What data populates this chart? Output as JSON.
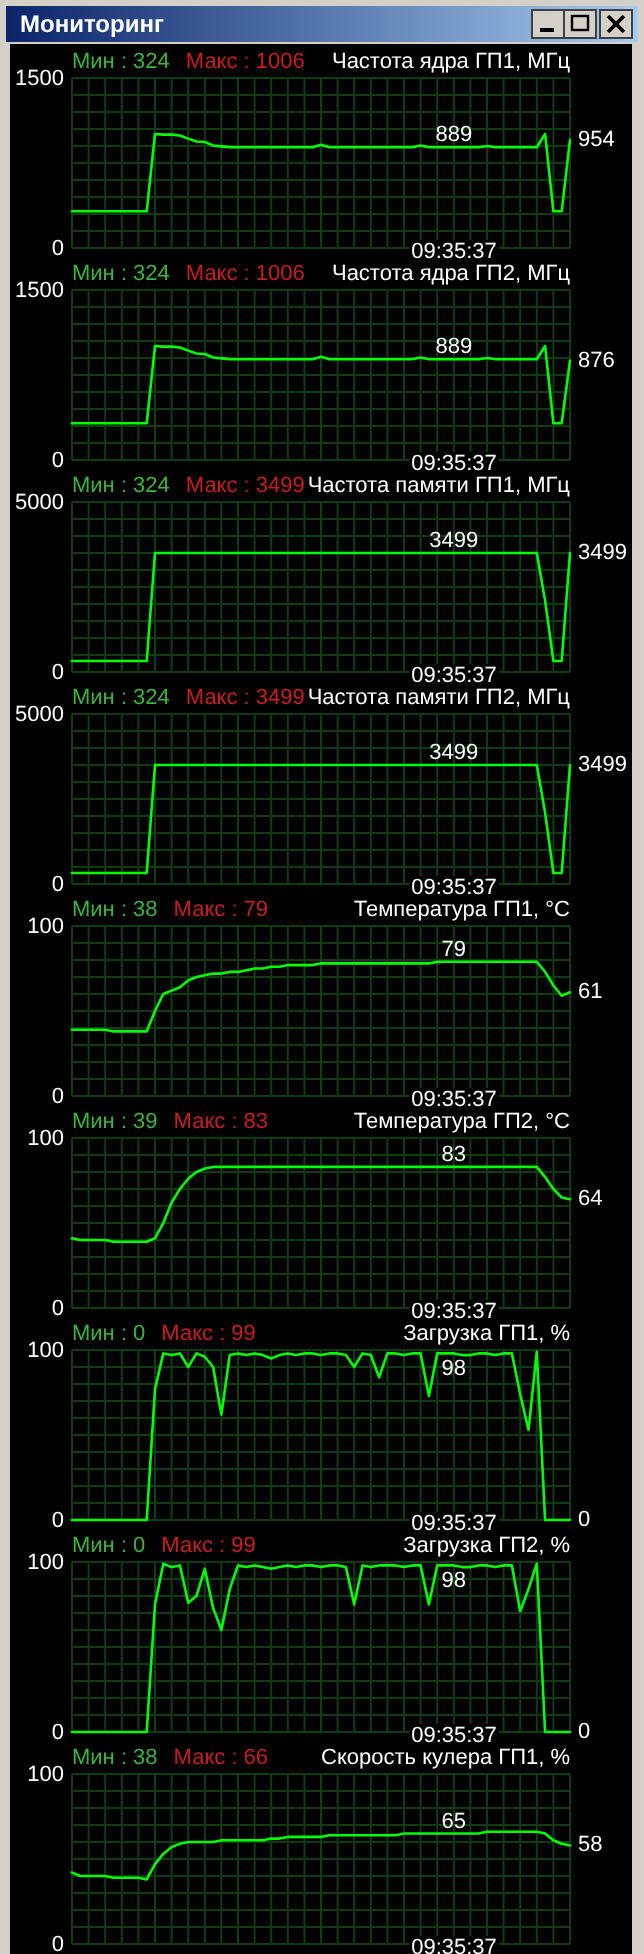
{
  "chart_data": [
    {
      "type": "other",
      "title": "Мониторинг"
    },
    {
      "type": "line",
      "title": "Частота ядра ГП1, МГц",
      "annotations": [
        "Мин : 324",
        "Макс : 1006",
        "09:35:37",
        "954",
        "889"
      ],
      "categories": [
        null,
        null,
        null,
        null,
        null,
        null,
        null,
        null,
        null,
        null,
        null,
        null,
        null,
        null,
        null,
        null,
        null,
        null,
        null,
        null,
        null,
        null,
        null,
        null,
        null,
        null,
        null,
        null,
        null,
        null,
        null,
        null,
        null,
        null,
        null,
        null,
        null,
        null,
        null,
        null,
        null,
        null,
        null,
        null,
        null,
        null,
        null,
        null,
        null,
        null,
        null,
        null,
        null,
        null,
        null,
        null,
        null,
        null,
        null,
        null,
        null
      ],
      "ylim": [
        0,
        1500
      ],
      "yticks": [
        0,
        {
          "value": 150,
          "label": null
        },
        {
          "value": 300,
          "label": null
        },
        {
          "value": 450,
          "label": null
        },
        {
          "value": 600,
          "label": null
        },
        {
          "value": 750,
          "label": null
        },
        {
          "value": 900,
          "label": null
        },
        {
          "value": 1050,
          "label": null
        },
        {
          "value": 1200,
          "label": null
        },
        {
          "value": 1350,
          "label": null
        },
        1500
      ],
      "tick_labels": "y",
      "grid": true,
      "series": [
        {
          "color": "#00ff00",
          "values": [
            324,
            324,
            324,
            324,
            324,
            324,
            324,
            324,
            324,
            324,
            1006,
            1000,
            1000,
            993,
            965,
            940,
            935,
            905,
            897,
            890,
            889,
            889,
            889,
            889,
            889,
            889,
            889,
            889,
            889,
            889,
            910,
            889,
            889,
            889,
            889,
            889,
            889,
            889,
            889,
            889,
            889,
            889,
            905,
            889,
            889,
            889,
            889,
            889,
            889,
            889,
            900,
            889,
            889,
            889,
            889,
            889,
            889,
            1006,
            324,
            324,
            954
          ]
        }
      ]
    },
    {
      "type": "line",
      "title": "Частота ядра ГП2, МГц",
      "annotations": [
        "Мин : 324",
        "Макс : 1006",
        "09:35:37",
        "876",
        "889"
      ],
      "categories": [
        null,
        null,
        null,
        null,
        null,
        null,
        null,
        null,
        null,
        null,
        null,
        null,
        null,
        null,
        null,
        null,
        null,
        null,
        null,
        null,
        null,
        null,
        null,
        null,
        null,
        null,
        null,
        null,
        null,
        null,
        null,
        null,
        null,
        null,
        null,
        null,
        null,
        null,
        null,
        null,
        null,
        null,
        null,
        null,
        null,
        null,
        null,
        null,
        null,
        null,
        null,
        null,
        null,
        null,
        null,
        null,
        null,
        null,
        null,
        null,
        null
      ],
      "ylim": [
        0,
        1500
      ],
      "yticks": [
        0,
        {
          "value": 150,
          "label": null
        },
        {
          "value": 300,
          "label": null
        },
        {
          "value": 450,
          "label": null
        },
        {
          "value": 600,
          "label": null
        },
        {
          "value": 750,
          "label": null
        },
        {
          "value": 900,
          "label": null
        },
        {
          "value": 1050,
          "label": null
        },
        {
          "value": 1200,
          "label": null
        },
        {
          "value": 1350,
          "label": null
        },
        1500
      ],
      "tick_labels": "y",
      "grid": true,
      "series": [
        {
          "color": "#00ff00",
          "values": [
            324,
            324,
            324,
            324,
            324,
            324,
            324,
            324,
            324,
            324,
            1006,
            1000,
            1000,
            993,
            965,
            940,
            935,
            905,
            897,
            890,
            889,
            889,
            889,
            889,
            889,
            889,
            889,
            889,
            889,
            889,
            910,
            889,
            889,
            889,
            889,
            889,
            889,
            889,
            889,
            889,
            889,
            889,
            905,
            889,
            889,
            889,
            889,
            889,
            889,
            889,
            900,
            889,
            889,
            889,
            889,
            889,
            889,
            1006,
            324,
            324,
            876
          ]
        }
      ]
    },
    {
      "type": "line",
      "title": "Частота памяти ГП1, МГц",
      "annotations": [
        "Мин : 324",
        "Макс : 3499",
        "09:35:37",
        "3499",
        "3499"
      ],
      "categories": [
        null,
        null,
        null,
        null,
        null,
        null,
        null,
        null,
        null,
        null,
        null,
        null,
        null,
        null,
        null,
        null,
        null,
        null,
        null,
        null,
        null,
        null,
        null,
        null,
        null,
        null,
        null,
        null,
        null,
        null,
        null,
        null,
        null,
        null,
        null,
        null,
        null,
        null,
        null,
        null,
        null,
        null,
        null,
        null,
        null,
        null,
        null,
        null,
        null,
        null,
        null,
        null,
        null,
        null,
        null,
        null,
        null,
        null,
        null,
        null,
        null
      ],
      "ylim": [
        0,
        5000
      ],
      "yticks": [
        0,
        {
          "value": 500,
          "label": null
        },
        {
          "value": 1000,
          "label": null
        },
        {
          "value": 1500,
          "label": null
        },
        {
          "value": 2000,
          "label": null
        },
        {
          "value": 2500,
          "label": null
        },
        {
          "value": 3000,
          "label": null
        },
        {
          "value": 3500,
          "label": null
        },
        {
          "value": 4000,
          "label": null
        },
        {
          "value": 4500,
          "label": null
        },
        5000
      ],
      "tick_labels": "y",
      "grid": true,
      "series": [
        {
          "color": "#00ff00",
          "values": [
            324,
            324,
            324,
            324,
            324,
            324,
            324,
            324,
            324,
            324,
            3499,
            3499,
            3499,
            3499,
            3499,
            3499,
            3499,
            3499,
            3499,
            3499,
            3499,
            3499,
            3499,
            3499,
            3499,
            3499,
            3499,
            3499,
            3499,
            3499,
            3499,
            3499,
            3499,
            3499,
            3499,
            3499,
            3499,
            3499,
            3499,
            3499,
            3499,
            3499,
            3499,
            3499,
            3499,
            3499,
            3499,
            3499,
            3499,
            3499,
            3499,
            3499,
            3499,
            3499,
            3499,
            3499,
            3499,
            2100,
            324,
            324,
            3499
          ]
        }
      ]
    },
    {
      "type": "line",
      "title": "Частота памяти ГП2, МГц",
      "annotations": [
        "Мин : 324",
        "Макс : 3499",
        "09:35:37",
        "3499",
        "3499"
      ],
      "categories": [
        null,
        null,
        null,
        null,
        null,
        null,
        null,
        null,
        null,
        null,
        null,
        null,
        null,
        null,
        null,
        null,
        null,
        null,
        null,
        null,
        null,
        null,
        null,
        null,
        null,
        null,
        null,
        null,
        null,
        null,
        null,
        null,
        null,
        null,
        null,
        null,
        null,
        null,
        null,
        null,
        null,
        null,
        null,
        null,
        null,
        null,
        null,
        null,
        null,
        null,
        null,
        null,
        null,
        null,
        null,
        null,
        null,
        null,
        null,
        null,
        null
      ],
      "ylim": [
        0,
        5000
      ],
      "yticks": [
        0,
        {
          "value": 500,
          "label": null
        },
        {
          "value": 1000,
          "label": null
        },
        {
          "value": 1500,
          "label": null
        },
        {
          "value": 2000,
          "label": null
        },
        {
          "value": 2500,
          "label": null
        },
        {
          "value": 3000,
          "label": null
        },
        {
          "value": 3500,
          "label": null
        },
        {
          "value": 4000,
          "label": null
        },
        {
          "value": 4500,
          "label": null
        },
        5000
      ],
      "tick_labels": "y",
      "grid": true,
      "series": [
        {
          "color": "#00ff00",
          "values": [
            324,
            324,
            324,
            324,
            324,
            324,
            324,
            324,
            324,
            324,
            3499,
            3499,
            3499,
            3499,
            3499,
            3499,
            3499,
            3499,
            3499,
            3499,
            3499,
            3499,
            3499,
            3499,
            3499,
            3499,
            3499,
            3499,
            3499,
            3499,
            3499,
            3499,
            3499,
            3499,
            3499,
            3499,
            3499,
            3499,
            3499,
            3499,
            3499,
            3499,
            3499,
            3499,
            3499,
            3499,
            3499,
            3499,
            3499,
            3499,
            3499,
            3499,
            3499,
            3499,
            3499,
            3499,
            3499,
            2100,
            324,
            324,
            3499
          ]
        }
      ]
    },
    {
      "type": "line",
      "title": "Температура ГП1, °C",
      "annotations": [
        "Мин : 38",
        "Макс : 79",
        "09:35:37",
        "61",
        "79"
      ],
      "categories": [
        null,
        null,
        null,
        null,
        null,
        null,
        null,
        null,
        null,
        null,
        null,
        null,
        null,
        null,
        null,
        null,
        null,
        null,
        null,
        null,
        null,
        null,
        null,
        null,
        null,
        null,
        null,
        null,
        null,
        null,
        null,
        null,
        null,
        null,
        null,
        null,
        null,
        null,
        null,
        null,
        null,
        null,
        null,
        null,
        null,
        null,
        null,
        null,
        null,
        null,
        null,
        null,
        null,
        null,
        null,
        null,
        null,
        null,
        null,
        null,
        null
      ],
      "ylim": [
        0,
        100
      ],
      "yticks": [
        0,
        {
          "value": 10,
          "label": null
        },
        {
          "value": 20,
          "label": null
        },
        {
          "value": 30,
          "label": null
        },
        {
          "value": 40,
          "label": null
        },
        {
          "value": 50,
          "label": null
        },
        {
          "value": 60,
          "label": null
        },
        {
          "value": 70,
          "label": null
        },
        {
          "value": 80,
          "label": null
        },
        {
          "value": 90,
          "label": null
        },
        100
      ],
      "tick_labels": "y",
      "grid": true,
      "series": [
        {
          "color": "#00ff00",
          "values": [
            39,
            39,
            39,
            39,
            39,
            38,
            38,
            38,
            38,
            38,
            50,
            60,
            62,
            64,
            68,
            70,
            71,
            72,
            72,
            73,
            73,
            74,
            75,
            75,
            76,
            76,
            77,
            77,
            77,
            77,
            78,
            78,
            78,
            78,
            78,
            78,
            78,
            78,
            78,
            78,
            78,
            78,
            78,
            78,
            79,
            79,
            79,
            79,
            79,
            79,
            79,
            79,
            79,
            79,
            79,
            79,
            79,
            73,
            65,
            59,
            61
          ]
        }
      ]
    },
    {
      "type": "line",
      "title": "Температура ГП2, °C",
      "annotations": [
        "Мин : 39",
        "Макс : 83",
        "09:35:37",
        "64",
        "83"
      ],
      "categories": [
        null,
        null,
        null,
        null,
        null,
        null,
        null,
        null,
        null,
        null,
        null,
        null,
        null,
        null,
        null,
        null,
        null,
        null,
        null,
        null,
        null,
        null,
        null,
        null,
        null,
        null,
        null,
        null,
        null,
        null,
        null,
        null,
        null,
        null,
        null,
        null,
        null,
        null,
        null,
        null,
        null,
        null,
        null,
        null,
        null,
        null,
        null,
        null,
        null,
        null,
        null,
        null,
        null,
        null,
        null,
        null,
        null,
        null,
        null,
        null,
        null
      ],
      "ylim": [
        0,
        100
      ],
      "yticks": [
        0,
        {
          "value": 10,
          "label": null
        },
        {
          "value": 20,
          "label": null
        },
        {
          "value": 30,
          "label": null
        },
        {
          "value": 40,
          "label": null
        },
        {
          "value": 50,
          "label": null
        },
        {
          "value": 60,
          "label": null
        },
        {
          "value": 70,
          "label": null
        },
        {
          "value": 80,
          "label": null
        },
        {
          "value": 90,
          "label": null
        },
        100
      ],
      "tick_labels": "y",
      "grid": true,
      "series": [
        {
          "color": "#00ff00",
          "values": [
            41,
            40,
            40,
            40,
            40,
            39,
            39,
            39,
            39,
            39,
            41,
            50,
            62,
            70,
            76,
            80,
            82,
            83,
            83,
            83,
            83,
            83,
            83,
            83,
            83,
            83,
            83,
            83,
            83,
            83,
            83,
            83,
            83,
            83,
            83,
            83,
            83,
            83,
            83,
            83,
            83,
            83,
            83,
            83,
            83,
            83,
            83,
            83,
            83,
            83,
            83,
            83,
            83,
            83,
            83,
            83,
            83,
            77,
            70,
            65,
            64
          ]
        }
      ]
    },
    {
      "type": "line",
      "title": "Загрузка ГП1, %",
      "annotations": [
        "Мин : 0",
        "Макс : 99",
        "09:35:37",
        "0",
        "98"
      ],
      "categories": [
        null,
        null,
        null,
        null,
        null,
        null,
        null,
        null,
        null,
        null,
        null,
        null,
        null,
        null,
        null,
        null,
        null,
        null,
        null,
        null,
        null,
        null,
        null,
        null,
        null,
        null,
        null,
        null,
        null,
        null,
        null,
        null,
        null,
        null,
        null,
        null,
        null,
        null,
        null,
        null,
        null,
        null,
        null,
        null,
        null,
        null,
        null,
        null,
        null,
        null,
        null,
        null,
        null,
        null,
        null,
        null,
        null,
        null,
        null,
        null,
        null
      ],
      "ylim": [
        0,
        100
      ],
      "yticks": [
        0,
        {
          "value": 10,
          "label": null
        },
        {
          "value": 20,
          "label": null
        },
        {
          "value": 30,
          "label": null
        },
        {
          "value": 40,
          "label": null
        },
        {
          "value": 50,
          "label": null
        },
        {
          "value": 60,
          "label": null
        },
        {
          "value": 70,
          "label": null
        },
        {
          "value": 80,
          "label": null
        },
        {
          "value": 90,
          "label": null
        },
        100
      ],
      "tick_labels": "y",
      "grid": true,
      "series": [
        {
          "color": "#00ff00",
          "values": [
            0,
            0,
            0,
            0,
            0,
            0,
            0,
            0,
            0,
            0,
            77,
            98,
            97,
            98,
            90,
            98,
            96,
            90,
            62,
            97,
            98,
            97,
            98,
            97,
            95,
            97,
            98,
            97,
            98,
            98,
            97,
            98,
            98,
            97,
            90,
            98,
            97,
            84,
            98,
            98,
            97,
            98,
            98,
            73,
            98,
            98,
            98,
            97,
            97,
            98,
            98,
            97,
            98,
            98,
            74,
            53,
            99,
            0,
            0,
            0,
            0
          ]
        }
      ]
    },
    {
      "type": "line",
      "title": "Загрузка ГП2, %",
      "annotations": [
        "Мин : 0",
        "Макс : 99",
        "09:35:37",
        "0",
        "98"
      ],
      "categories": [
        null,
        null,
        null,
        null,
        null,
        null,
        null,
        null,
        null,
        null,
        null,
        null,
        null,
        null,
        null,
        null,
        null,
        null,
        null,
        null,
        null,
        null,
        null,
        null,
        null,
        null,
        null,
        null,
        null,
        null,
        null,
        null,
        null,
        null,
        null,
        null,
        null,
        null,
        null,
        null,
        null,
        null,
        null,
        null,
        null,
        null,
        null,
        null,
        null,
        null,
        null,
        null,
        null,
        null,
        null,
        null,
        null,
        null,
        null,
        null,
        null
      ],
      "ylim": [
        0,
        100
      ],
      "yticks": [
        0,
        {
          "value": 10,
          "label": null
        },
        {
          "value": 20,
          "label": null
        },
        {
          "value": 30,
          "label": null
        },
        {
          "value": 40,
          "label": null
        },
        {
          "value": 50,
          "label": null
        },
        {
          "value": 60,
          "label": null
        },
        {
          "value": 70,
          "label": null
        },
        {
          "value": 80,
          "label": null
        },
        {
          "value": 90,
          "label": null
        },
        100
      ],
      "tick_labels": "y",
      "grid": true,
      "series": [
        {
          "color": "#00ff00",
          "values": [
            0,
            0,
            0,
            0,
            0,
            0,
            0,
            0,
            0,
            0,
            75,
            99,
            97,
            98,
            76,
            80,
            96,
            73,
            60,
            84,
            98,
            97,
            98,
            97,
            96,
            97,
            98,
            97,
            98,
            98,
            97,
            98,
            98,
            97,
            75,
            98,
            97,
            98,
            98,
            98,
            97,
            98,
            98,
            75,
            98,
            98,
            98,
            97,
            97,
            98,
            98,
            97,
            98,
            98,
            71,
            84,
            99,
            0,
            0,
            0,
            0
          ]
        }
      ]
    },
    {
      "type": "line",
      "title": "Скорость кулера ГП1, %",
      "annotations": [
        "Мин : 38",
        "Макс : 66",
        "09:35:37",
        "58",
        "65"
      ],
      "categories": [
        null,
        null,
        null,
        null,
        null,
        null,
        null,
        null,
        null,
        null,
        null,
        null,
        null,
        null,
        null,
        null,
        null,
        null,
        null,
        null,
        null,
        null,
        null,
        null,
        null,
        null,
        null,
        null,
        null,
        null,
        null,
        null,
        null,
        null,
        null,
        null,
        null,
        null,
        null,
        null,
        null,
        null,
        null,
        null,
        null,
        null,
        null,
        null,
        null,
        null,
        null,
        null,
        null,
        null,
        null,
        null,
        null,
        null,
        null,
        null,
        null
      ],
      "ylim": [
        0,
        100
      ],
      "yticks": [
        0,
        {
          "value": 10,
          "label": null
        },
        {
          "value": 20,
          "label": null
        },
        {
          "value": 30,
          "label": null
        },
        {
          "value": 40,
          "label": null
        },
        {
          "value": 50,
          "label": null
        },
        {
          "value": 60,
          "label": null
        },
        {
          "value": 70,
          "label": null
        },
        {
          "value": 80,
          "label": null
        },
        {
          "value": 90,
          "label": null
        },
        100
      ],
      "tick_labels": "y",
      "grid": true,
      "series": [
        {
          "color": "#00ff00",
          "values": [
            42,
            40,
            40,
            40,
            40,
            39,
            39,
            39,
            39,
            38,
            47,
            53,
            57,
            59,
            60,
            60,
            60,
            60,
            61,
            61,
            61,
            61,
            61,
            61,
            62,
            62,
            63,
            63,
            63,
            63,
            63,
            64,
            64,
            64,
            64,
            64,
            64,
            64,
            64,
            64,
            65,
            65,
            65,
            65,
            65,
            65,
            65,
            65,
            65,
            65,
            66,
            66,
            66,
            66,
            66,
            66,
            66,
            65,
            61,
            59,
            58
          ]
        }
      ]
    }
  ]
}
